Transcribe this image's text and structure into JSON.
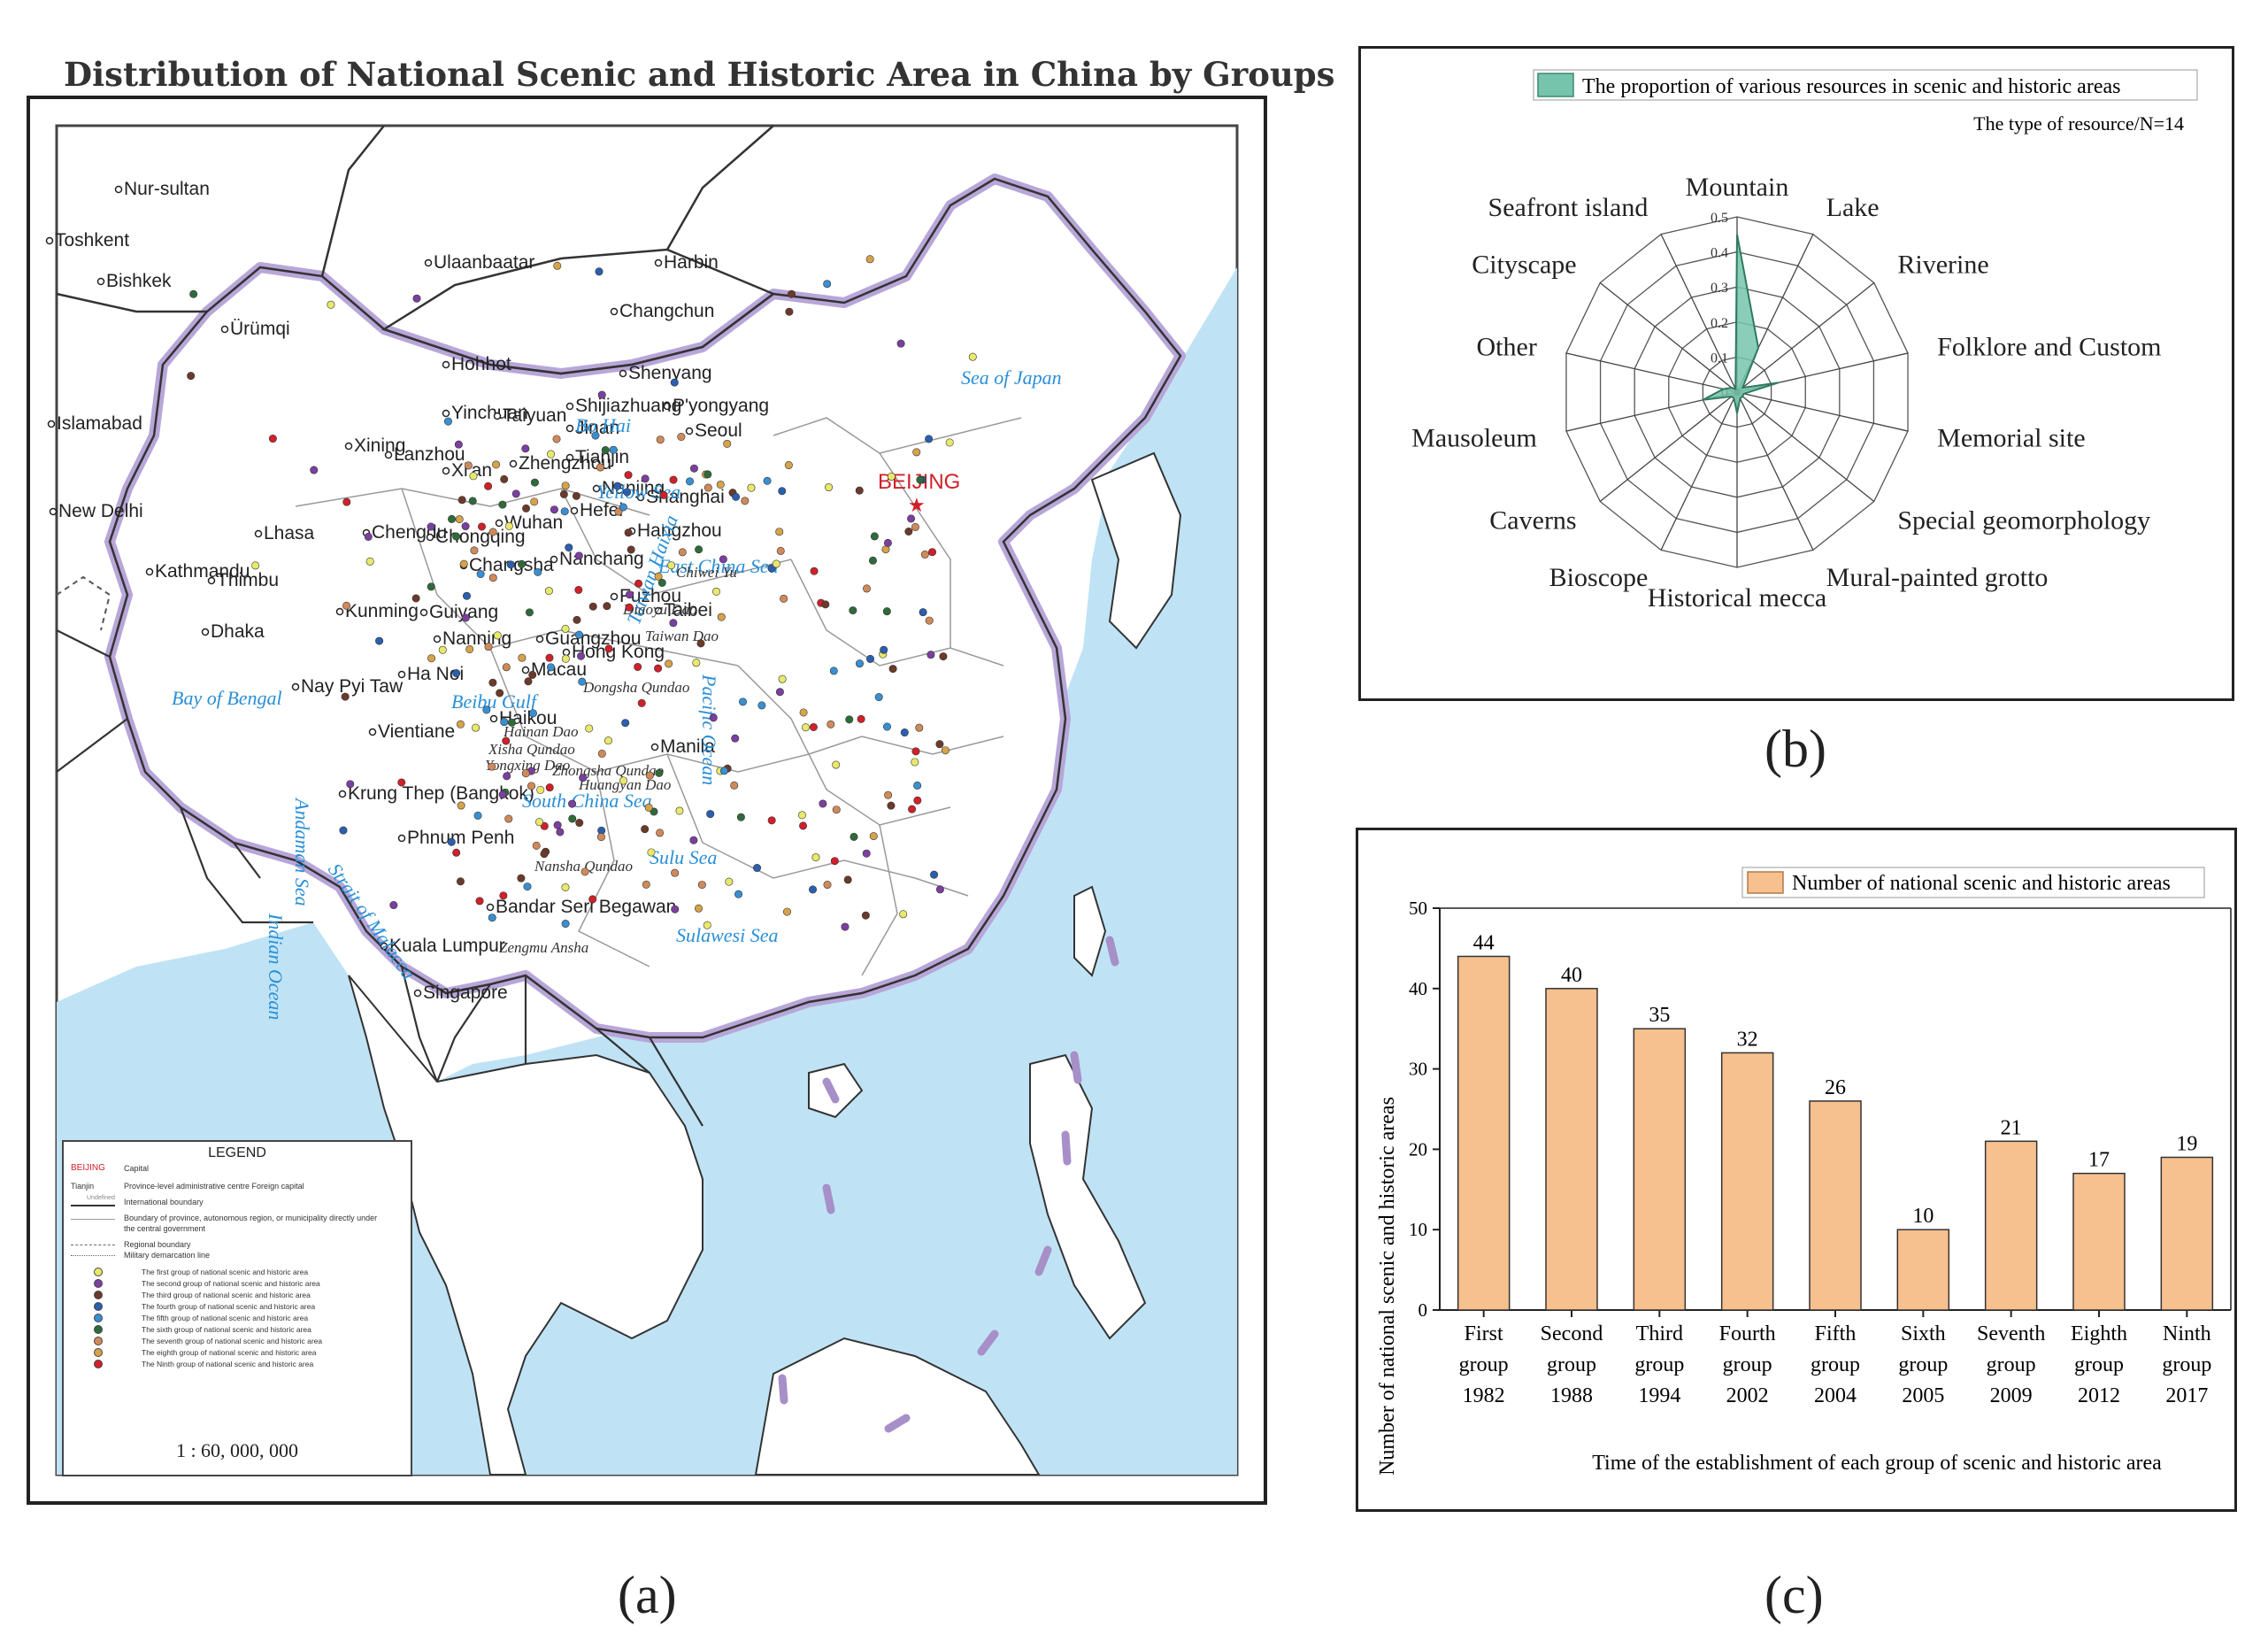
{
  "map": {
    "title": "Distribution of National Scenic and Historic Area in China by Groups",
    "caption": "(a)",
    "capital_label": "BEIJING",
    "cities": [
      "Nur-sultan",
      "Toshkent",
      "Bishkek",
      "Ürümqi",
      "Ulaanbaatar",
      "Harbin",
      "Changchun",
      "Shenyang",
      "Hohhot",
      "Tianjin",
      "P'yongyang",
      "Seoul",
      "Islamabad",
      "Yinchuan",
      "Taiyuan",
      "Shijiazhuang",
      "Jinan",
      "Xining",
      "Lanzhou",
      "Zhengzhou",
      "Xi'an",
      "New Delhi",
      "Lhasa",
      "Chengdu",
      "Nanjing",
      "Shanghai",
      "Hefei",
      "Wuhan",
      "Hangzhou",
      "Chongqing",
      "Kathmandu",
      "Thimbu",
      "Changsha",
      "Nanchang",
      "Fuzhou",
      "Taibei",
      "Guiyang",
      "Kunming",
      "Dhaka",
      "Nanning",
      "Guangzhou",
      "Hong Kong",
      "Macau",
      "Ha Noi",
      "Nay Pyi Taw",
      "Haikou",
      "Vientiane",
      "Manila",
      "Krung Thep (Bangkok)",
      "Phnum Penh",
      "Bandar Seri Begawan",
      "Kuala Lumpur",
      "Singapore"
    ],
    "water_labels": [
      "Sea of Japan",
      "Bo Hai",
      "Yellow Sea",
      "East China Sea",
      "Bay of Bengal",
      "Pacific Ocean",
      "South China Sea",
      "Sulu Sea",
      "Sulawesi Sea",
      "Andaman Sea",
      "Indian Ocean",
      "Strait of Malacca",
      "Taiwan Haixia",
      "Beibu Gulf"
    ],
    "island_labels": [
      "Diaoyu Dao",
      "Chiwei Yu",
      "Taiwan Dao",
      "Dongsha Qundao",
      "Hainan Dao",
      "Xisha Qundao",
      "Yongxing Dao",
      "Zhongsha Qundao",
      "Huangyan Dao",
      "Nansha Qundao",
      "Zengmu Ansha"
    ],
    "legend": {
      "title": "LEGEND",
      "capital": {
        "sample": "BEIJING",
        "text": "Capital"
      },
      "province": {
        "sample": "Tianjin",
        "text": "Province-level administrative centre Foreign capital"
      },
      "intl_boundary": {
        "sample": "Undefined",
        "text": "International boundary"
      },
      "lines": [
        "Boundary of province, autonomous region, or municipality directly under the central government",
        "Regional boundary",
        "Military demarcation line"
      ],
      "groups": [
        {
          "text": "The first group of national scenic and historic area",
          "color": "#e8e86a"
        },
        {
          "text": "The second group of national scenic and historic area",
          "color": "#7b3fa0"
        },
        {
          "text": "The third group of national scenic and historic area",
          "color": "#6b3a2a"
        },
        {
          "text": "The fourth group of national scenic and historic area",
          "color": "#2a5fb0"
        },
        {
          "text": "The fifth group of national scenic and historic area",
          "color": "#3a8fd0"
        },
        {
          "text": "The sixth group of national scenic and historic area",
          "color": "#2f6b3a"
        },
        {
          "text": "The seventh group of national scenic and historic area",
          "color": "#d08a5a"
        },
        {
          "text": "The eighth group of national scenic and historic area",
          "color": "#d6a24a"
        },
        {
          "text": "The Ninth group of national scenic and historic area",
          "color": "#d0202a"
        }
      ],
      "scale": "1 : 60, 000, 000"
    }
  },
  "chart_data": [
    {
      "panel": "b",
      "type": "radar",
      "caption": "(b)",
      "legend": "The proportion of various resources in scenic and historic areas",
      "subtitle": "The type of resource/N=14",
      "axes": [
        "Mountain",
        "Lake",
        "Riverine",
        "Folklore and Custom",
        "Memorial site",
        "Special geomorphology",
        "Mural-painted grotto",
        "Historical mecca",
        "Bioscope",
        "Caverns",
        "Mausoleum",
        "Other",
        "Cityscape",
        "Seafront island"
      ],
      "values": [
        0.45,
        0.14,
        0.02,
        0.12,
        0.02,
        0.02,
        0.02,
        0.06,
        0.02,
        0.02,
        0.1,
        0.04,
        0.02,
        0.01
      ],
      "ticks": [
        "0",
        "0.1",
        "0.2",
        "0.3",
        "0.4",
        "0.5"
      ],
      "rmax": 0.5,
      "color": "#76c4ab"
    },
    {
      "panel": "c",
      "type": "bar",
      "caption": "(c)",
      "legend": "Number of national scenic and historic areas",
      "categories": [
        [
          "First",
          "group",
          "1982"
        ],
        [
          "Second",
          "group",
          "1988"
        ],
        [
          "Third",
          "group",
          "1994"
        ],
        [
          "Fourth",
          "group",
          "2002"
        ],
        [
          "Fifth",
          "group",
          "2004"
        ],
        [
          "Sixth",
          "group",
          "2005"
        ],
        [
          "Seventh",
          "group",
          "2009"
        ],
        [
          "Eighth",
          "group",
          "2012"
        ],
        [
          "Ninth",
          "group",
          "2017"
        ]
      ],
      "values": [
        44,
        40,
        35,
        32,
        26,
        10,
        21,
        17,
        19
      ],
      "xlabel": "Time of the establishment of each group of scenic and historic area",
      "ylabel": "Number of national scenic and historic areas",
      "ylim": [
        0,
        50
      ],
      "yticks": [
        0,
        10,
        20,
        30,
        40,
        50
      ],
      "color": "#f7c08f"
    }
  ]
}
